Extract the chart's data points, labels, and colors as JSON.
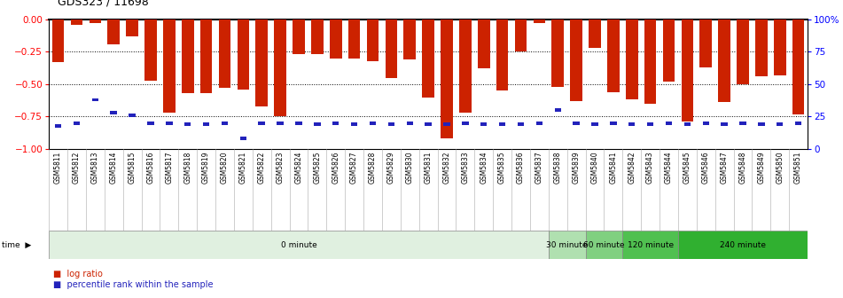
{
  "title": "GDS323 / 11698",
  "samples": [
    "GSM5811",
    "GSM5812",
    "GSM5813",
    "GSM5814",
    "GSM5815",
    "GSM5816",
    "GSM5817",
    "GSM5818",
    "GSM5819",
    "GSM5820",
    "GSM5821",
    "GSM5822",
    "GSM5823",
    "GSM5824",
    "GSM5825",
    "GSM5826",
    "GSM5827",
    "GSM5828",
    "GSM5829",
    "GSM5830",
    "GSM5831",
    "GSM5832",
    "GSM5833",
    "GSM5834",
    "GSM5835",
    "GSM5836",
    "GSM5837",
    "GSM5838",
    "GSM5839",
    "GSM5840",
    "GSM5841",
    "GSM5842",
    "GSM5843",
    "GSM5844",
    "GSM5845",
    "GSM5846",
    "GSM5847",
    "GSM5848",
    "GSM5849",
    "GSM5850",
    "GSM5851"
  ],
  "log_ratio": [
    -0.33,
    -0.04,
    -0.03,
    -0.19,
    -0.13,
    -0.47,
    -0.72,
    -0.57,
    -0.57,
    -0.53,
    -0.54,
    -0.67,
    -0.75,
    -0.27,
    -0.27,
    -0.3,
    -0.3,
    -0.32,
    -0.45,
    -0.31,
    -0.6,
    -0.92,
    -0.72,
    -0.38,
    -0.55,
    -0.25,
    -0.03,
    -0.52,
    -0.63,
    -0.22,
    -0.56,
    -0.62,
    -0.65,
    -0.48,
    -0.79,
    -0.37,
    -0.64,
    -0.5,
    -0.44,
    -0.43,
    -0.73
  ],
  "percentile": [
    18,
    20,
    38,
    28,
    26,
    20,
    20,
    19,
    19,
    20,
    8,
    20,
    20,
    20,
    19,
    20,
    19,
    20,
    19,
    20,
    19,
    19,
    20,
    19,
    19,
    19,
    20,
    30,
    20,
    19,
    20,
    19,
    19,
    20,
    19,
    20,
    19,
    20,
    19,
    19,
    20
  ],
  "time_groups": [
    {
      "label": "0 minute",
      "start": 0,
      "end": 27,
      "color": "#e0f0e0"
    },
    {
      "label": "30 minute",
      "start": 27,
      "end": 29,
      "color": "#b0e0b0"
    },
    {
      "label": "60 minute",
      "start": 29,
      "end": 31,
      "color": "#80d080"
    },
    {
      "label": "120 minute",
      "start": 31,
      "end": 34,
      "color": "#50c050"
    },
    {
      "label": "240 minute",
      "start": 34,
      "end": 41,
      "color": "#30b030"
    }
  ],
  "bar_color": "#cc2200",
  "percentile_color": "#2222bb",
  "bg_color": "#ffffff",
  "xlbl_bg": "#dddddd",
  "ylim_left": [
    -1.0,
    0.0
  ],
  "ylim_right": [
    0,
    100
  ],
  "yticks_left": [
    0.0,
    -0.25,
    -0.5,
    -0.75,
    -1.0
  ],
  "yticks_right": [
    0,
    25,
    50,
    75,
    100
  ],
  "legend_log_ratio": "log ratio",
  "legend_percentile": "percentile rank within the sample"
}
